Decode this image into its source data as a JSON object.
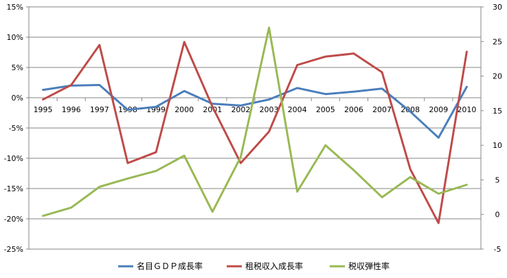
{
  "chart_data": {
    "type": "line",
    "x": [
      "1995",
      "1996",
      "1997",
      "1998",
      "1999",
      "2000",
      "2001",
      "2002",
      "2003",
      "2004",
      "2005",
      "2006",
      "2007",
      "2008",
      "2009",
      "2010"
    ],
    "y_left": {
      "ticks": [
        "15%",
        "10%",
        "5%",
        "0%",
        "-5%",
        "-10%",
        "-15%",
        "-20%",
        "-25%"
      ],
      "values": [
        15,
        10,
        5,
        0,
        -5,
        -10,
        -15,
        -20,
        -25
      ],
      "ylim": [
        -25,
        15
      ]
    },
    "y_right": {
      "ticks": [
        "30",
        "25",
        "20",
        "15",
        "10",
        "5",
        "0",
        "-5"
      ],
      "values": [
        30,
        25,
        20,
        15,
        10,
        5,
        0,
        -5
      ],
      "ylim": [
        -5,
        30
      ]
    },
    "grid": "horizontal",
    "legend": "bottom",
    "series": [
      {
        "name": "名目ＧＤＰ成長率",
        "axis": "left",
        "color": "#4a7ebb",
        "values": [
          1.3,
          2.0,
          2.1,
          -2.0,
          -1.5,
          1.1,
          -1.0,
          -1.3,
          -0.3,
          1.6,
          0.6,
          1.0,
          1.5,
          -2.3,
          -6.6,
          1.8
        ]
      },
      {
        "name": "租税収入成長率",
        "axis": "left",
        "color": "#be4b48",
        "values": [
          -0.3,
          2.1,
          8.7,
          -10.8,
          -9.0,
          9.2,
          -1.5,
          -10.8,
          -5.6,
          5.4,
          6.8,
          7.3,
          4.2,
          -11.8,
          -20.7,
          7.6
        ]
      },
      {
        "name": "税収弾性率",
        "axis": "right",
        "color": "#98b954",
        "values": [
          -0.2,
          1.0,
          4.0,
          5.2,
          6.3,
          8.5,
          0.4,
          8.3,
          27.0,
          3.3,
          10.0,
          6.4,
          2.5,
          5.4,
          3.0,
          4.3
        ]
      }
    ]
  }
}
